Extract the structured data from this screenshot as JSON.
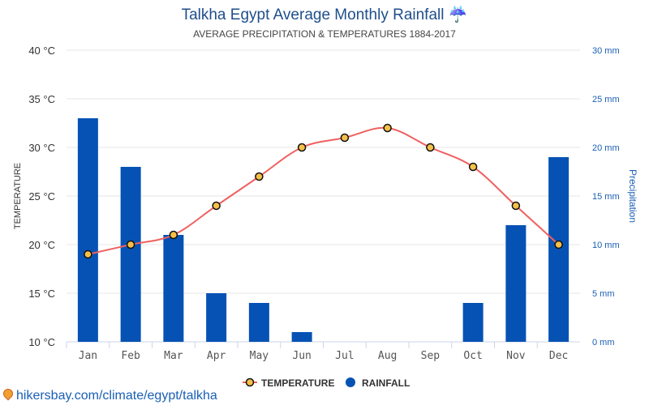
{
  "title": "Talkha Egypt Average Monthly Rainfall",
  "title_icon": "umbrella-rain-icon",
  "subtitle": "AVERAGE PRECIPITATION & TEMPERATURES 1884-2017",
  "link": "hikersbay.com/climate/egypt/talkha",
  "colors": {
    "bar": "#0652b4",
    "line": "#f06060",
    "marker": "#f5c04a",
    "title": "#1f4e8c"
  },
  "chart_data": {
    "type": "bar+line",
    "categories": [
      "Jan",
      "Feb",
      "Mar",
      "Apr",
      "May",
      "Jun",
      "Jul",
      "Aug",
      "Sep",
      "Oct",
      "Nov",
      "Dec"
    ],
    "series": [
      {
        "name": "TEMPERATURE",
        "type": "line",
        "axis": "left",
        "values": [
          19,
          20,
          21,
          24,
          27,
          30,
          31,
          32,
          30,
          28,
          24,
          20
        ]
      },
      {
        "name": "RAINFALL",
        "type": "bar",
        "axis": "right",
        "values": [
          23,
          18,
          11,
          5,
          4,
          1,
          0,
          0,
          0,
          4,
          12,
          19
        ]
      }
    ],
    "ylabel": "TEMPERATURE",
    "ylabel_right": "Precipitation",
    "ylim": [
      10,
      40
    ],
    "ylim_right": [
      0,
      30
    ],
    "yticks": [
      "10 °C",
      "15 °C",
      "20 °C",
      "25 °C",
      "30 °C",
      "35 °C",
      "40 °C"
    ],
    "yticks_right": [
      "0 mm",
      "5 mm",
      "10 mm",
      "15 mm",
      "20 mm",
      "25 mm",
      "30 mm"
    ],
    "grid": true,
    "legend": "bottom"
  }
}
